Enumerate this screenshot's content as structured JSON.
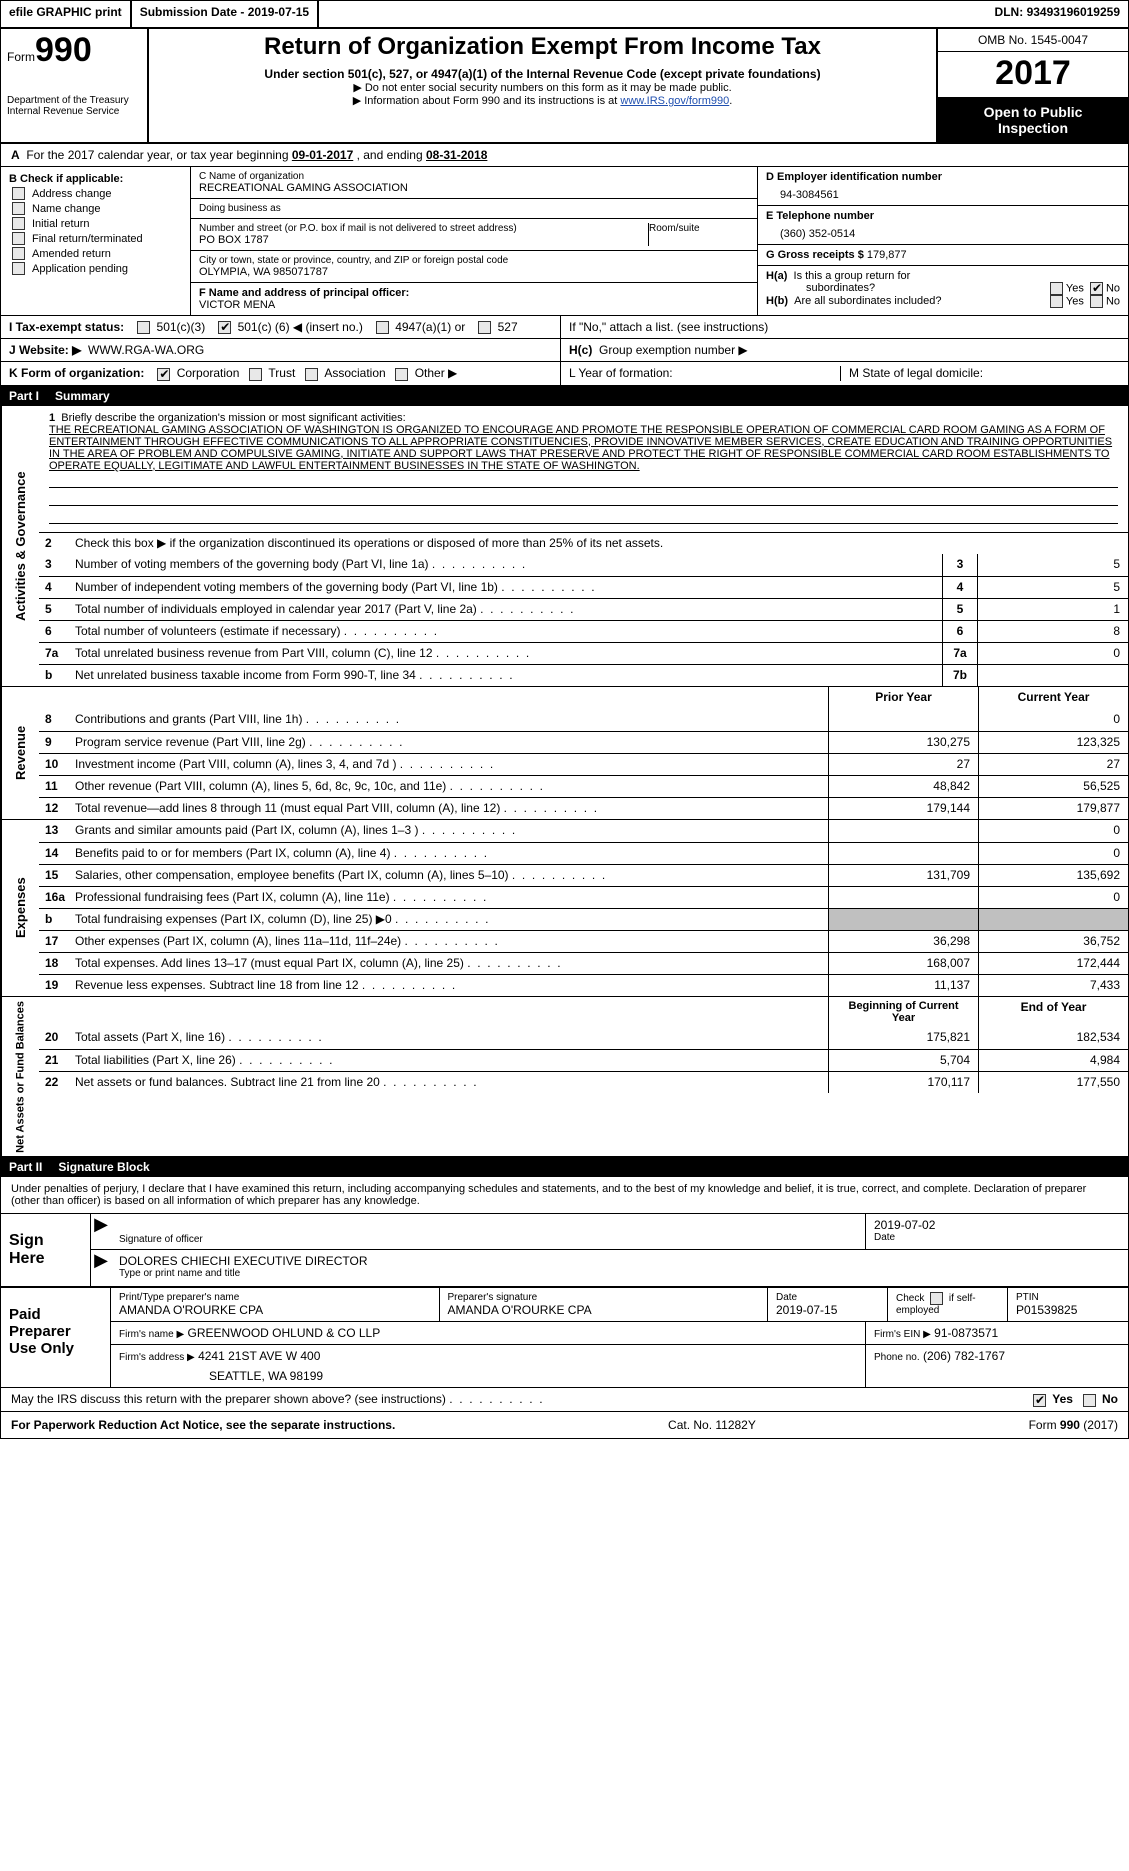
{
  "top": {
    "efile": "efile GRAPHIC print",
    "subdate_label": "Submission Date -",
    "subdate": "2019-07-15",
    "dln_label": "DLN:",
    "dln": "93493196019259"
  },
  "hdr": {
    "form_label": "Form",
    "form_num": "990",
    "dept1": "Department of the Treasury",
    "dept2": "Internal Revenue Service",
    "title": "Return of Organization Exempt From Income Tax",
    "sub": "Under section 501(c), 527, or 4947(a)(1) of the Internal Revenue Code (except private foundations)",
    "note1": "▶ Do not enter social security numbers on this form as it may be made public.",
    "note2_pre": "▶ Information about Form 990 and its instructions is at ",
    "note2_link": "www.IRS.gov/form990",
    "omb": "OMB No. 1545-0047",
    "year": "2017",
    "open1": "Open to Public",
    "open2": "Inspection"
  },
  "A": {
    "pre": "A",
    "text": "For the 2017 calendar year, or tax year beginning",
    "begin": "09-01-2017",
    "mid": ", and ending",
    "end": "08-31-2018"
  },
  "B": {
    "title": "B Check if applicable:",
    "opts": [
      "Address change",
      "Name change",
      "Initial return",
      "Final return/terminated",
      "Amended return",
      "Application pending"
    ]
  },
  "C": {
    "name_label": "C Name of organization",
    "name": "RECREATIONAL GAMING ASSOCIATION",
    "dba_label": "Doing business as",
    "dba": "",
    "street_label": "Number and street (or P.O. box if mail is not delivered to street address)",
    "room_label": "Room/suite",
    "street": "PO BOX 1787",
    "city_label": "City or town, state or province, country, and ZIP or foreign postal code",
    "city": "OLYMPIA, WA  985071787",
    "officer_label": "F  Name and address of principal officer:",
    "officer": "VICTOR MENA"
  },
  "D": {
    "label": "D Employer identification number",
    "val": "94-3084561"
  },
  "E": {
    "label": "E Telephone number",
    "val": "(360) 352-0514"
  },
  "G": {
    "label": "G Gross receipts $",
    "val": "179,877"
  },
  "H": {
    "a_label": "H(a)",
    "a_text": "Is this a group return for",
    "a_text2": "subordinates?",
    "b_label": "H(b)",
    "b_text": "Are all subordinates included?",
    "attach": "If \"No,\" attach a list. (see instructions)",
    "c_label": "H(c)",
    "c_text": "Group exemption number ▶",
    "yes": "Yes",
    "no": "No"
  },
  "I": {
    "label": "I  Tax-exempt status:",
    "c3": "501(c)(3)",
    "c": "501(c) (",
    "c_num": "6",
    "c_tail": ") ◀ (insert no.)",
    "a1": "4947(a)(1) or",
    "s527": "527"
  },
  "J": {
    "label": "J  Website: ▶",
    "val": "WWW.RGA-WA.ORG"
  },
  "K": {
    "label": "K Form of organization:",
    "corp": "Corporation",
    "trust": "Trust",
    "assoc": "Association",
    "other": "Other ▶"
  },
  "L": {
    "label": "L  Year of formation:"
  },
  "M": {
    "label": "M State of legal domicile:"
  },
  "P1": {
    "label": "Part I",
    "title": "Summary",
    "l1_label": "1",
    "l1_text": "Briefly describe the organization's mission or most significant activities:",
    "l1_val": "THE RECREATIONAL GAMING ASSOCIATION OF WASHINGTON IS ORGANIZED TO ENCOURAGE AND PROMOTE THE RESPONSIBLE OPERATION OF COMMERCIAL CARD ROOM GAMING AS A FORM OF ENTERTAINMENT THROUGH EFFECTIVE COMMUNICATIONS TO ALL APPROPRIATE CONSTITUENCIES, PROVIDE INNOVATIVE MEMBER SERVICES, CREATE EDUCATION AND TRAINING OPPORTUNITIES IN THE AREA OF PROBLEM AND COMPULSIVE GAMING, INITIATE AND SUPPORT LAWS THAT PRESERVE AND PROTECT THE RIGHT OF RESPONSIBLE COMMERCIAL CARD ROOM ESTABLISHMENTS TO OPERATE EQUALLY, LEGITIMATE AND LAWFUL ENTERTAINMENT BUSINESSES IN THE STATE OF WASHINGTON.",
    "l2": "Check this box ▶       if the organization discontinued its operations or disposed of more than 25% of its net assets.",
    "rows_ag": [
      {
        "n": "3",
        "d": "Number of voting members of the governing body (Part VI, line 1a)",
        "b": "3",
        "v": "5"
      },
      {
        "n": "4",
        "d": "Number of independent voting members of the governing body (Part VI, line 1b)",
        "b": "4",
        "v": "5"
      },
      {
        "n": "5",
        "d": "Total number of individuals employed in calendar year 2017 (Part V, line 2a)",
        "b": "5",
        "v": "1"
      },
      {
        "n": "6",
        "d": "Total number of volunteers (estimate if necessary)",
        "b": "6",
        "v": "8"
      },
      {
        "n": "7a",
        "d": "Total unrelated business revenue from Part VIII, column (C), line 12",
        "b": "7a",
        "v": "0"
      },
      {
        "n": "b",
        "d": "Net unrelated business taxable income from Form 990-T, line 34",
        "b": "7b",
        "v": ""
      }
    ],
    "col_prior": "Prior Year",
    "col_curr": "Current Year",
    "rows_rev": [
      {
        "n": "8",
        "d": "Contributions and grants (Part VIII, line 1h)",
        "p": "",
        "c": "0"
      },
      {
        "n": "9",
        "d": "Program service revenue (Part VIII, line 2g)",
        "p": "130,275",
        "c": "123,325"
      },
      {
        "n": "10",
        "d": "Investment income (Part VIII, column (A), lines 3, 4, and 7d )",
        "p": "27",
        "c": "27"
      },
      {
        "n": "11",
        "d": "Other revenue (Part VIII, column (A), lines 5, 6d, 8c, 9c, 10c, and 11e)",
        "p": "48,842",
        "c": "56,525"
      },
      {
        "n": "12",
        "d": "Total revenue—add lines 8 through 11 (must equal Part VIII, column (A), line 12)",
        "p": "179,144",
        "c": "179,877"
      }
    ],
    "rows_exp": [
      {
        "n": "13",
        "d": "Grants and similar amounts paid (Part IX, column (A), lines 1–3 )",
        "p": "",
        "c": "0"
      },
      {
        "n": "14",
        "d": "Benefits paid to or for members (Part IX, column (A), line 4)",
        "p": "",
        "c": "0"
      },
      {
        "n": "15",
        "d": "Salaries, other compensation, employee benefits (Part IX, column (A), lines 5–10)",
        "p": "131,709",
        "c": "135,692"
      },
      {
        "n": "16a",
        "d": "Professional fundraising fees (Part IX, column (A), line 11e)",
        "p": "",
        "c": "0"
      },
      {
        "n": "b",
        "d": "Total fundraising expenses (Part IX, column (D), line 25) ▶0",
        "p": "SHADE",
        "c": "SHADE"
      },
      {
        "n": "17",
        "d": "Other expenses (Part IX, column (A), lines 11a–11d, 11f–24e)",
        "p": "36,298",
        "c": "36,752"
      },
      {
        "n": "18",
        "d": "Total expenses. Add lines 13–17 (must equal Part IX, column (A), line 25)",
        "p": "168,007",
        "c": "172,444"
      },
      {
        "n": "19",
        "d": "Revenue less expenses. Subtract line 18 from line 12",
        "p": "11,137",
        "c": "7,433"
      }
    ],
    "col_begin": "Beginning of Current Year",
    "col_end": "End of Year",
    "rows_na": [
      {
        "n": "20",
        "d": "Total assets (Part X, line 16)",
        "p": "175,821",
        "c": "182,534"
      },
      {
        "n": "21",
        "d": "Total liabilities (Part X, line 26)",
        "p": "5,704",
        "c": "4,984"
      },
      {
        "n": "22",
        "d": "Net assets or fund balances. Subtract line 21 from line 20",
        "p": "170,117",
        "c": "177,550"
      }
    ],
    "side_ag": "Activities & Governance",
    "side_rev": "Revenue",
    "side_exp": "Expenses",
    "side_na": "Net Assets or Fund Balances"
  },
  "P2": {
    "label": "Part II",
    "title": "Signature Block",
    "decl": "Under penalties of perjury, I declare that I have examined this return, including accompanying schedules and statements, and to the best of my knowledge and belief, it is true, correct, and complete. Declaration of preparer (other than officer) is based on all information of which preparer has any knowledge.",
    "sign": "Sign Here",
    "sig_of": "Signature of officer",
    "date_lbl": "Date",
    "date_val": "2019-07-02",
    "typed": "DOLORES CHIECHI EXECUTIVE DIRECTOR",
    "typed_lbl": "Type or print name and title",
    "paid": "Paid Preparer Use Only",
    "pp_name_lbl": "Print/Type preparer's name",
    "pp_name": "AMANDA O'ROURKE CPA",
    "pp_sig_lbl": "Preparer's signature",
    "pp_sig": "AMANDA O'ROURKE CPA",
    "pp_date_lbl": "Date",
    "pp_date": "2019-07-15",
    "pp_self_lbl": "Check        if self-employed",
    "ptin_lbl": "PTIN",
    "ptin": "P01539825",
    "firm_name_lbl": "Firm's name     ▶",
    "firm_name": "GREENWOOD OHLUND & CO LLP",
    "firm_ein_lbl": "Firm's EIN ▶",
    "firm_ein": "91-0873571",
    "firm_addr_lbl": "Firm's address ▶",
    "firm_addr1": "4241 21ST AVE W 400",
    "firm_addr2": "SEATTLE, WA  98199",
    "phone_lbl": "Phone no.",
    "phone": "(206) 782-1767",
    "discuss": "May the IRS discuss this return with the preparer shown above? (see instructions)",
    "yes": "Yes",
    "no": "No"
  },
  "foot": {
    "pra": "For Paperwork Reduction Act Notice, see the separate instructions.",
    "cat": "Cat. No. 11282Y",
    "form": "Form 990 (2017)"
  }
}
